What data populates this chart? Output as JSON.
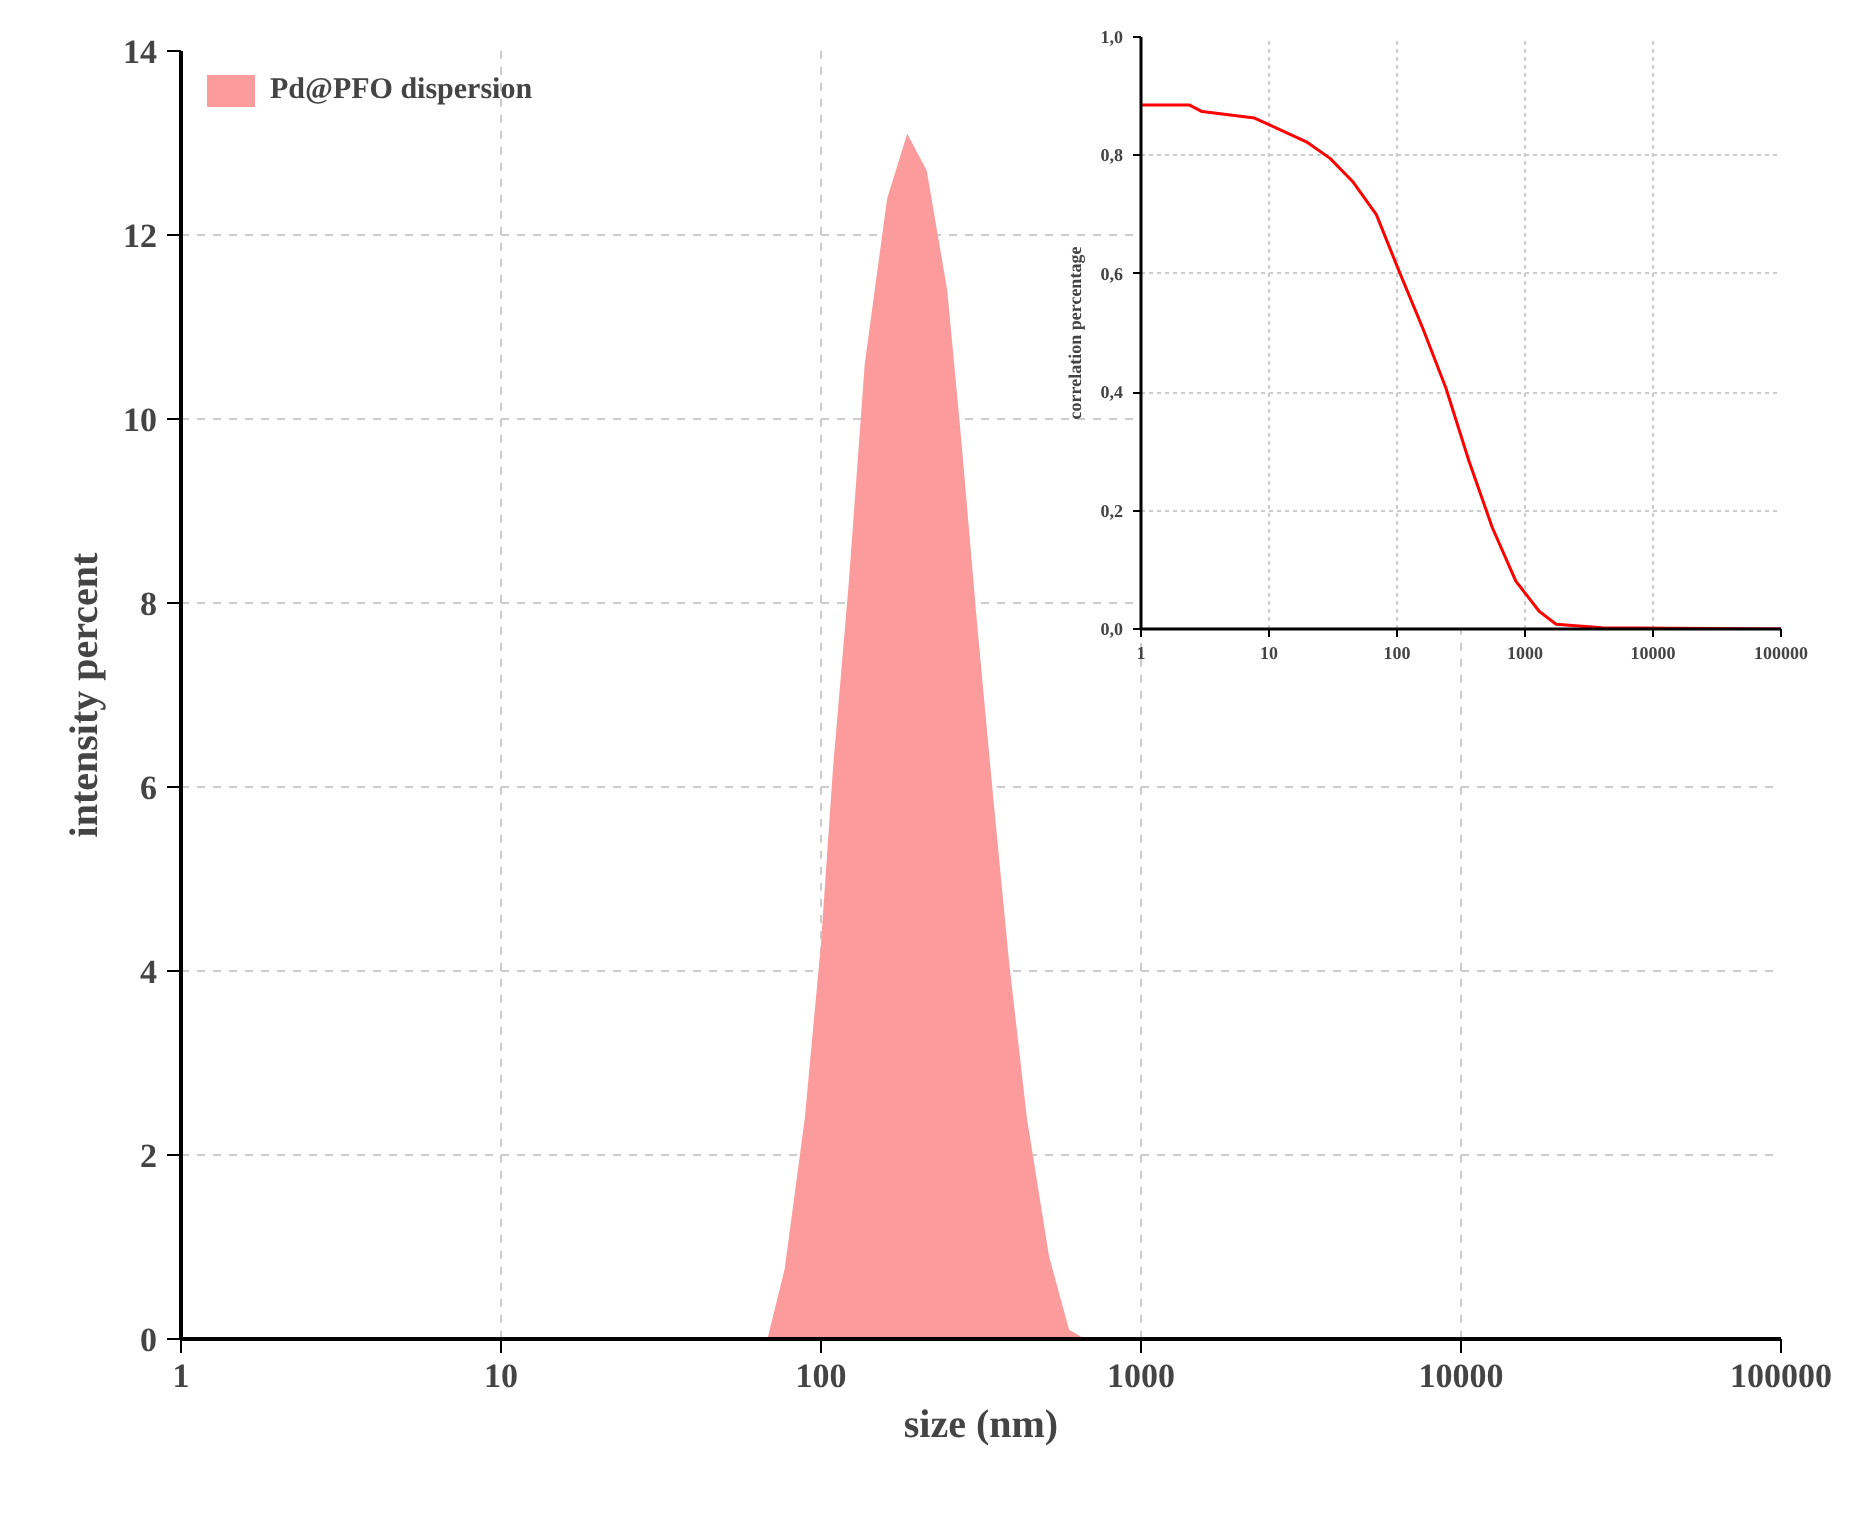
{
  "chart_data": [
    {
      "type": "area",
      "xlabel": "size (nm)",
      "ylabel": "intensity percent",
      "log": "x",
      "grid": true,
      "legend": "top left",
      "xlim": [
        1,
        100000
      ],
      "xticks": [
        1,
        10,
        100,
        1000,
        10000,
        100000
      ],
      "ylim": [
        0,
        14
      ],
      "yticks": [
        0,
        2,
        4,
        6,
        8,
        10,
        12,
        14
      ],
      "series": [
        {
          "name": "Pd@PFO dispersion",
          "color": "#fc9b9b",
          "x": [
            68,
            77,
            89,
            100,
            109,
            122,
            137,
            161,
            186,
            214,
            248,
            274,
            307,
            345,
            387,
            440,
            516,
            596,
            668
          ],
          "values": [
            0,
            0.76,
            2.4,
            4.3,
            6.2,
            8.2,
            10.6,
            12.4,
            13.1,
            12.7,
            11.4,
            9.8,
            7.8,
            5.9,
            4.1,
            2.4,
            0.9,
            0.1,
            0
          ]
        }
      ]
    },
    {
      "type": "line",
      "ylabel": "correlation percentage",
      "log": "x",
      "grid": true,
      "xlim": [
        1,
        100000
      ],
      "xticks": [
        1,
        10,
        100,
        1000,
        10000,
        100000
      ],
      "ylim": [
        0,
        1
      ],
      "yticks": [
        {
          "value": 0,
          "label": "0,0"
        },
        {
          "value": 0.2,
          "label": "0,2"
        },
        {
          "value": 0.4,
          "label": "0,4"
        },
        {
          "value": 0.6,
          "label": "0,6"
        },
        {
          "value": 0.8,
          "label": "0,8"
        },
        {
          "value": 1,
          "label": "1,0"
        }
      ],
      "series": [
        {
          "color": "#ff0000",
          "x": [
            1,
            2.4,
            3,
            7.7,
            10,
            19.6,
            30,
            45,
            69,
            104,
            159,
            241,
            366,
            556,
            848,
            1290,
            1750,
            4000,
            100000
          ],
          "values": [
            0.885,
            0.885,
            0.874,
            0.863,
            0.852,
            0.823,
            0.795,
            0.756,
            0.7,
            0.604,
            0.508,
            0.407,
            0.283,
            0.171,
            0.081,
            0.03,
            0.008,
            0.002,
            0
          ]
        }
      ]
    }
  ]
}
